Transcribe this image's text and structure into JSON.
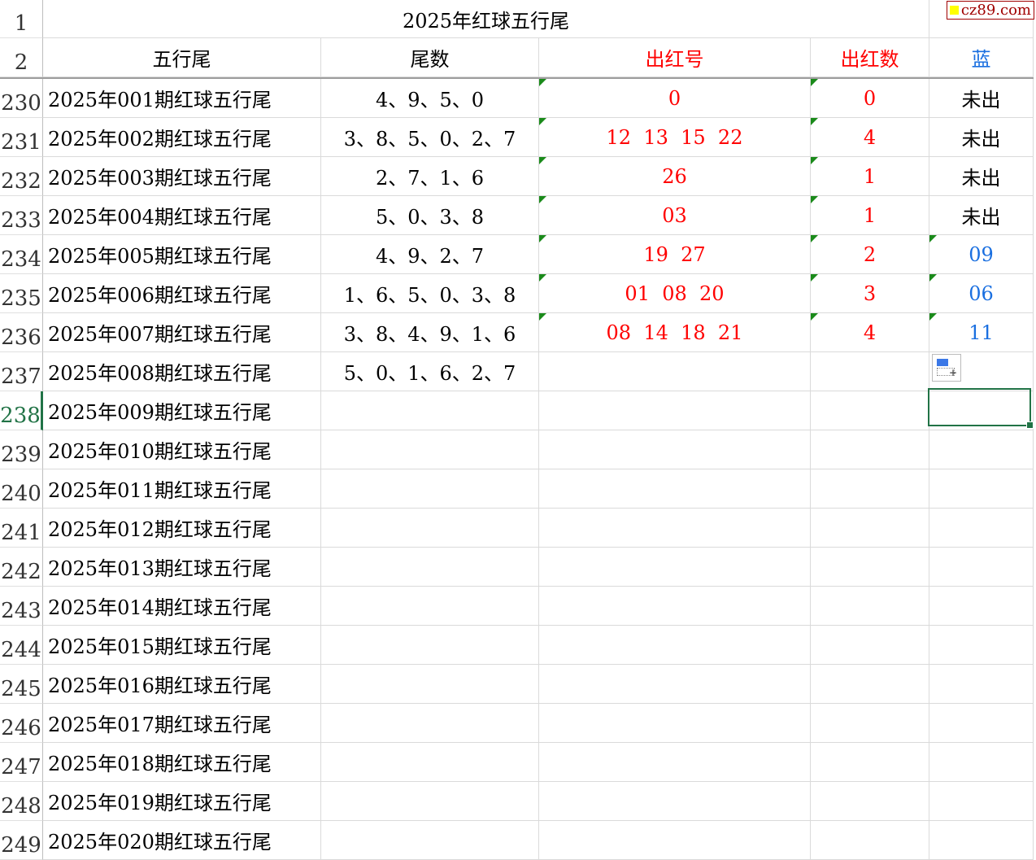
{
  "logo_text": "cz89.com",
  "title_row": {
    "row_num": "1",
    "title": "2025年红球五行尾"
  },
  "header_row": {
    "row_num": "2",
    "cols": [
      "五行尾",
      "尾数",
      "出红号",
      "出红数",
      "蓝"
    ]
  },
  "colors": {
    "red": "#ff0000",
    "blue": "#1a6fe0",
    "selection": "#217346"
  },
  "rows": [
    {
      "n": "230",
      "a": "2025年001期红球五行尾",
      "b": "4、9、5、0",
      "c": "0",
      "d": "0",
      "e": "未出"
    },
    {
      "n": "231",
      "a": "2025年002期红球五行尾",
      "b": "3、8、5、0、2、7",
      "c": "12  13  15  22",
      "d": "4",
      "e": "未出"
    },
    {
      "n": "232",
      "a": "2025年003期红球五行尾",
      "b": "2、7、1、6",
      "c": "26",
      "d": "1",
      "e": "未出"
    },
    {
      "n": "233",
      "a": "2025年004期红球五行尾",
      "b": "5、0、3、8",
      "c": "03",
      "d": "1",
      "e": "未出"
    },
    {
      "n": "234",
      "a": "2025年005期红球五行尾",
      "b": "4、9、2、7",
      "c": "19  27",
      "d": "2",
      "e": "09"
    },
    {
      "n": "235",
      "a": "2025年006期红球五行尾",
      "b": "1、6、5、0、3、8",
      "c": "01  08  20",
      "d": "3",
      "e": "06"
    },
    {
      "n": "236",
      "a": "2025年007期红球五行尾",
      "b": "3、8、4、9、1、6",
      "c": "08  14  18  21",
      "d": "4",
      "e": "11"
    },
    {
      "n": "237",
      "a": "2025年008期红球五行尾",
      "b": "5、0、1、6、2、7",
      "c": "",
      "d": "",
      "e": ""
    },
    {
      "n": "238",
      "a": "2025年009期红球五行尾",
      "b": "",
      "c": "",
      "d": "",
      "e": ""
    },
    {
      "n": "239",
      "a": "2025年010期红球五行尾",
      "b": "",
      "c": "",
      "d": "",
      "e": ""
    },
    {
      "n": "240",
      "a": "2025年011期红球五行尾",
      "b": "",
      "c": "",
      "d": "",
      "e": ""
    },
    {
      "n": "241",
      "a": "2025年012期红球五行尾",
      "b": "",
      "c": "",
      "d": "",
      "e": ""
    },
    {
      "n": "242",
      "a": "2025年013期红球五行尾",
      "b": "",
      "c": "",
      "d": "",
      "e": ""
    },
    {
      "n": "243",
      "a": "2025年014期红球五行尾",
      "b": "",
      "c": "",
      "d": "",
      "e": ""
    },
    {
      "n": "244",
      "a": "2025年015期红球五行尾",
      "b": "",
      "c": "",
      "d": "",
      "e": ""
    },
    {
      "n": "245",
      "a": "2025年016期红球五行尾",
      "b": "",
      "c": "",
      "d": "",
      "e": ""
    },
    {
      "n": "246",
      "a": "2025年017期红球五行尾",
      "b": "",
      "c": "",
      "d": "",
      "e": ""
    },
    {
      "n": "247",
      "a": "2025年018期红球五行尾",
      "b": "",
      "c": "",
      "d": "",
      "e": ""
    },
    {
      "n": "248",
      "a": "2025年019期红球五行尾",
      "b": "",
      "c": "",
      "d": "",
      "e": ""
    },
    {
      "n": "249",
      "a": "2025年020期红球五行尾",
      "b": "",
      "c": "",
      "d": "",
      "e": ""
    }
  ],
  "selected_row": "238"
}
